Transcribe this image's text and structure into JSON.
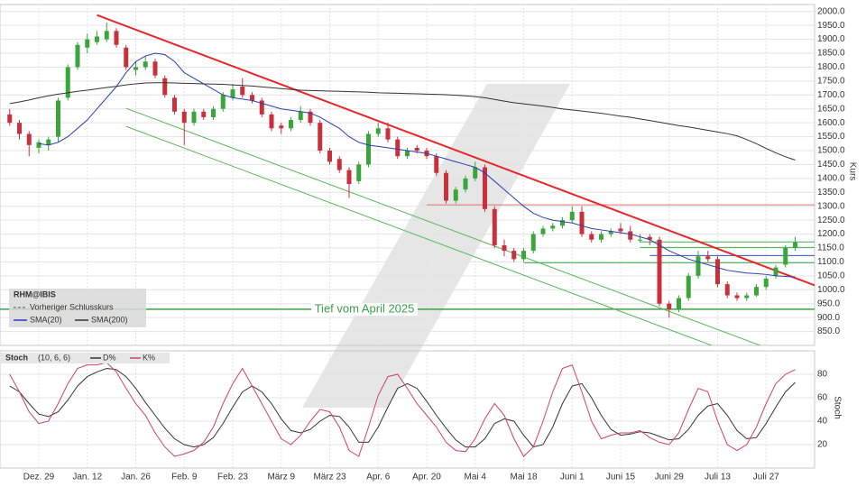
{
  "chart_data": [
    {
      "type": "candlestick",
      "symbol": "RHM@IBIS",
      "previous_close_label": "Vorheriger Schlusskurs",
      "y_label": "Kurs",
      "up_color": "#3aa53a",
      "down_color": "#c8303c",
      "categories": [
        null,
        null,
        null,
        "Dez. 29",
        null,
        null,
        null,
        null,
        "Jan. 12",
        null,
        null,
        null,
        null,
        "Jan. 26",
        null,
        null,
        null,
        null,
        "Feb. 9",
        null,
        null,
        null,
        null,
        "Feb. 23",
        null,
        null,
        null,
        null,
        "März 9",
        null,
        null,
        null,
        null,
        "März 23",
        null,
        null,
        null,
        null,
        "Apr. 6",
        null,
        null,
        null,
        null,
        "Apr. 20",
        null,
        null,
        null,
        null,
        "Mai 4",
        null,
        null,
        null,
        null,
        "Mai 18",
        null,
        null,
        null,
        null,
        "Juni 1",
        null,
        null,
        null,
        null,
        "Juni 15",
        null,
        null,
        null,
        null,
        "Juni 29",
        null,
        null,
        null,
        null,
        "Juli 13",
        null,
        null,
        null,
        null,
        "Juli 27",
        null,
        null,
        null
      ],
      "open": [
        1630,
        1600,
        1560,
        1510,
        1520,
        1550,
        1690,
        1800,
        1870,
        1890,
        1900,
        1930,
        1870,
        1790,
        1800,
        1820,
        1760,
        1690,
        1640,
        1600,
        1640,
        1620,
        1650,
        1690,
        1730,
        1700,
        1680,
        1630,
        1590,
        1580,
        1610,
        1640,
        1600,
        1500,
        1470,
        1430,
        1390,
        1450,
        1560,
        1580,
        1540,
        1480,
        1510,
        1500,
        1480,
        1420,
        1320,
        1360,
        1400,
        1440,
        1290,
        1160,
        1140,
        1110,
        1140,
        1200,
        1220,
        1230,
        1250,
        1280,
        1200,
        1180,
        1200,
        1220,
        1210,
        1180,
        1190,
        1180,
        950,
        930,
        970,
        1050,
        1120,
        1110,
        1020,
        980,
        970,
        980,
        1010,
        1050,
        1090,
        1150
      ],
      "high": [
        1650,
        1610,
        1570,
        1540,
        1550,
        1690,
        1810,
        1890,
        1920,
        1930,
        1960,
        1940,
        1880,
        1820,
        1840,
        1830,
        1770,
        1700,
        1650,
        1650,
        1650,
        1660,
        1710,
        1740,
        1760,
        1710,
        1690,
        1640,
        1600,
        1620,
        1660,
        1650,
        1610,
        1510,
        1480,
        1440,
        1460,
        1570,
        1600,
        1600,
        1550,
        1510,
        1520,
        1510,
        1490,
        1430,
        1370,
        1410,
        1460,
        1450,
        1300,
        1180,
        1150,
        1150,
        1210,
        1230,
        1240,
        1260,
        1300,
        1300,
        1210,
        1210,
        1220,
        1240,
        1230,
        1200,
        1200,
        1190,
        960,
        980,
        1060,
        1140,
        1140,
        1120,
        1030,
        990,
        990,
        1020,
        1050,
        1090,
        1160,
        1190
      ],
      "low": [
        1590,
        1540,
        1480,
        1490,
        1500,
        1530,
        1680,
        1790,
        1850,
        1880,
        1890,
        1870,
        1790,
        1770,
        1790,
        1760,
        1690,
        1630,
        1520,
        1590,
        1610,
        1610,
        1640,
        1680,
        1690,
        1670,
        1620,
        1570,
        1560,
        1570,
        1600,
        1590,
        1490,
        1450,
        1420,
        1330,
        1380,
        1440,
        1550,
        1530,
        1470,
        1470,
        1490,
        1470,
        1410,
        1310,
        1310,
        1350,
        1390,
        1280,
        1150,
        1120,
        1100,
        1100,
        1130,
        1190,
        1210,
        1220,
        1240,
        1190,
        1170,
        1170,
        1190,
        1200,
        1170,
        1170,
        1160,
        940,
        900,
        920,
        960,
        1040,
        1100,
        1010,
        970,
        960,
        960,
        975,
        1000,
        1040,
        1080,
        1140
      ],
      "close": [
        1600,
        1560,
        1520,
        1530,
        1540,
        1680,
        1800,
        1880,
        1900,
        1910,
        1930,
        1880,
        1800,
        1800,
        1820,
        1770,
        1700,
        1640,
        1600,
        1640,
        1620,
        1650,
        1700,
        1720,
        1700,
        1680,
        1630,
        1580,
        1580,
        1610,
        1640,
        1600,
        1500,
        1460,
        1430,
        1380,
        1450,
        1560,
        1580,
        1540,
        1480,
        1500,
        1500,
        1480,
        1420,
        1320,
        1360,
        1400,
        1440,
        1290,
        1160,
        1140,
        1110,
        1140,
        1200,
        1220,
        1230,
        1250,
        1280,
        1200,
        1180,
        1200,
        1210,
        1210,
        1180,
        1180,
        1180,
        950,
        930,
        970,
        1050,
        1120,
        1110,
        1020,
        980,
        970,
        980,
        1010,
        1040,
        1080,
        1150,
        1170
      ],
      "series": [
        {
          "name": "SMA(20)",
          "color": "#2a3fb0",
          "values": [
            null,
            null,
            null,
            1525,
            1520,
            1530,
            1550,
            1580,
            1610,
            1650,
            1690,
            1730,
            1780,
            1820,
            1840,
            1850,
            1845,
            1820,
            1780,
            1760,
            1740,
            1720,
            1700,
            1690,
            1685,
            1680,
            1670,
            1660,
            1650,
            1645,
            1640,
            1635,
            1620,
            1600,
            1580,
            1550,
            1530,
            1520,
            1515,
            1510,
            1505,
            1500,
            1495,
            1490,
            1480,
            1470,
            1460,
            1450,
            1440,
            1420,
            1390,
            1360,
            1330,
            1300,
            1275,
            1260,
            1250,
            1245,
            1240,
            1230,
            1220,
            1215,
            1210,
            1205,
            1200,
            1190,
            1180,
            1160,
            1140,
            1125,
            1110,
            1100,
            1090,
            1080,
            1070,
            1065,
            1060,
            1058,
            1055,
            1050,
            1048,
            1046
          ]
        },
        {
          "name": "SMA(200)",
          "color": "#333333",
          "values": [
            1669,
            1675,
            1682,
            1690,
            1697,
            1703,
            1708,
            1713,
            1717,
            1722,
            1727,
            1731,
            1736,
            1740,
            1743,
            1744,
            1744,
            1743,
            1742,
            1741,
            1740,
            1739,
            1738,
            1736,
            1734,
            1732,
            1729,
            1726,
            1723,
            1720,
            1717,
            1716,
            1715,
            1714,
            1713,
            1712,
            1711,
            1710,
            1708,
            1707,
            1706,
            1705,
            1704,
            1703,
            1702,
            1701,
            1699,
            1697,
            1694,
            1690,
            1684,
            1678,
            1672,
            1668,
            1664,
            1660,
            1655,
            1650,
            1646,
            1642,
            1638,
            1634,
            1629,
            1624,
            1620,
            1614,
            1608,
            1602,
            1596,
            1590,
            1585,
            1579,
            1573,
            1567,
            1561,
            1553,
            1540,
            1525,
            1508,
            1492,
            1478,
            1466
          ]
        }
      ],
      "levels": [
        {
          "value": 1305,
          "color": "#e07070",
          "from": 43
        },
        {
          "value": 1172,
          "color": "#3cb04c",
          "from": 65
        },
        {
          "value": 1152,
          "color": "#3cb04c",
          "from": 65
        },
        {
          "value": 1123,
          "color": "#3050c0",
          "from": 66
        },
        {
          "value": 1097,
          "color": "#3cb04c",
          "from": 53
        },
        {
          "value": 930,
          "color": "#3aa04a",
          "label": "Tief vom April 2025"
        }
      ],
      "trendlines": [
        {
          "color": "#e8262a",
          "start": [
            9,
            1987
          ],
          "end": [
            83,
            1016
          ]
        },
        {
          "color": "#5cb85c",
          "start": [
            12,
            1652
          ],
          "end": [
            78,
            792
          ]
        },
        {
          "color": "#5cb85c",
          "start": [
            12,
            1587
          ],
          "end": [
            73,
            792
          ]
        }
      ],
      "ylim": [
        800,
        2025
      ],
      "yticks": [
        {
          "value": 850,
          "label": "850.0"
        },
        {
          "value": 900,
          "label": "900.0"
        },
        {
          "value": 950,
          "label": "950.0"
        },
        {
          "value": 1000,
          "label": "1000.0"
        },
        {
          "value": 1050,
          "label": "1050.0"
        },
        {
          "value": 1100,
          "label": "1100.0"
        },
        {
          "value": 1150,
          "label": "1150.0"
        },
        {
          "value": 1200,
          "label": "1200.0"
        },
        {
          "value": 1250,
          "label": "1250.0"
        },
        {
          "value": 1300,
          "label": "1300.0"
        },
        {
          "value": 1350,
          "label": "1350.0"
        },
        {
          "value": 1400,
          "label": "1400.0"
        },
        {
          "value": 1450,
          "label": "1450.0"
        },
        {
          "value": 1500,
          "label": "1500.0"
        },
        {
          "value": 1550,
          "label": "1550.0"
        },
        {
          "value": 1600,
          "label": "1600.0"
        },
        {
          "value": 1650,
          "label": "1650.0"
        },
        {
          "value": 1700,
          "label": "1700.0"
        },
        {
          "value": 1750,
          "label": "1750.0"
        },
        {
          "value": 1800,
          "label": "1800.0"
        },
        {
          "value": 1850,
          "label": "1850.0"
        },
        {
          "value": 1900,
          "label": "1900.0"
        },
        {
          "value": 1950,
          "label": "1950.0"
        },
        {
          "value": 2000,
          "label": "2000.0"
        }
      ],
      "grid": true
    },
    {
      "type": "line",
      "title": "Stoch",
      "parameters": "(10, 6, 6)",
      "y_label": "Stoch",
      "series": [
        {
          "name": "D%",
          "color": "#333333",
          "values": [
            70,
            65,
            55,
            46,
            44,
            48,
            58,
            70,
            78,
            82,
            85,
            84,
            78,
            68,
            56,
            45,
            34,
            25,
            20,
            18,
            20,
            26,
            38,
            52,
            65,
            70,
            65,
            55,
            42,
            32,
            30,
            33,
            40,
            45,
            44,
            35,
            22,
            22,
            35,
            52,
            68,
            72,
            68,
            57,
            45,
            34,
            24,
            18,
            18,
            25,
            38,
            42,
            40,
            28,
            18,
            20,
            35,
            55,
            70,
            72,
            60,
            45,
            33,
            28,
            29,
            31,
            30,
            27,
            24,
            25,
            33,
            45,
            53,
            55,
            45,
            32,
            25,
            26,
            38,
            52,
            65,
            73
          ]
        },
        {
          "name": "K%",
          "color": "#d0406a",
          "values": [
            80,
            65,
            48,
            38,
            40,
            55,
            72,
            85,
            88,
            88,
            90,
            82,
            68,
            55,
            45,
            30,
            18,
            10,
            12,
            15,
            22,
            35,
            55,
            72,
            85,
            70,
            55,
            40,
            25,
            20,
            28,
            40,
            50,
            48,
            35,
            15,
            10,
            35,
            62,
            78,
            80,
            68,
            55,
            45,
            35,
            22,
            15,
            14,
            25,
            42,
            55,
            45,
            25,
            10,
            18,
            40,
            65,
            85,
            88,
            65,
            40,
            25,
            28,
            30,
            30,
            32,
            26,
            22,
            20,
            30,
            50,
            68,
            65,
            40,
            20,
            15,
            20,
            35,
            55,
            72,
            80,
            84
          ]
        }
      ],
      "ylim": [
        0,
        100
      ],
      "yticks": [
        20,
        40,
        60,
        80
      ],
      "grid": true
    }
  ]
}
